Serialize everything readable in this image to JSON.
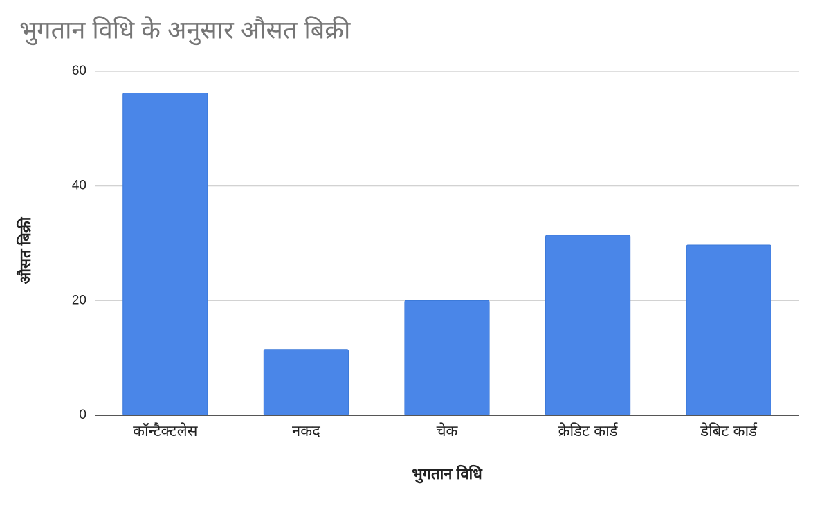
{
  "chart_data": {
    "type": "bar",
    "title": "भुगतान विधि के अनुसार औसत बिक्री",
    "x_label": "भुगतान विधि",
    "y_label": "औसत बिक्री",
    "categories": [
      "कॉन्टैक्टलेस",
      "नकद",
      "चेक",
      "क्रेडिट कार्ड",
      "डेबिट कार्ड"
    ],
    "values": [
      56.2,
      11.5,
      20.0,
      31.4,
      29.7
    ],
    "color": "#4a86e8",
    "ylim": [
      0,
      60
    ],
    "yticks": [
      0,
      20,
      40,
      60
    ],
    "grid": true
  }
}
